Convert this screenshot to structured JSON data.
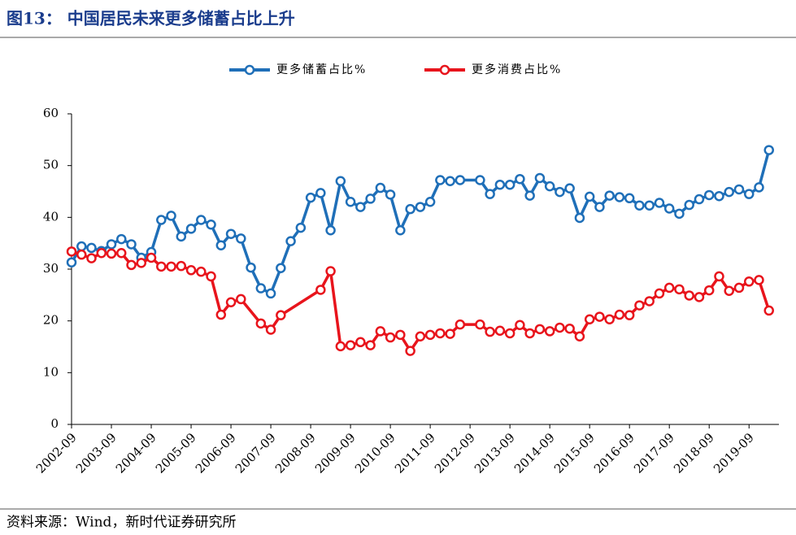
{
  "chart_data": {
    "type": "line",
    "title": "图13：  中国居民未来更多储蓄占比上升",
    "source": "资料来源：Wind，新时代证券研究所",
    "legend": "top",
    "xlim": [
      "2002-09",
      "2020-06"
    ],
    "xticks": [
      "2002-09",
      "2003-09",
      "2004-09",
      "2005-09",
      "2006-09",
      "2007-09",
      "2008-09",
      "2009-09",
      "2010-09",
      "2011-09",
      "2012-09",
      "2013-09",
      "2014-09",
      "2015-09",
      "2016-09",
      "2017-09",
      "2018-09",
      "2019-09"
    ],
    "ylim": [
      0,
      60
    ],
    "yticks": [
      0,
      10,
      20,
      30,
      40,
      50,
      60
    ],
    "series": [
      {
        "name": "更多储蓄占比%",
        "color": "#1f6fb8",
        "x": [
          "2002-09",
          "2002-12",
          "2003-03",
          "2003-06",
          "2003-09",
          "2003-12",
          "2004-03",
          "2004-06",
          "2004-09",
          "2004-12",
          "2005-03",
          "2005-06",
          "2005-09",
          "2005-12",
          "2006-03",
          "2006-06",
          "2006-09",
          "2006-12",
          "2007-03",
          "2007-06",
          "2007-09",
          "2007-12",
          "2008-03",
          "2008-06",
          "2008-09",
          "2008-12",
          "2009-03",
          "2009-06",
          "2009-09",
          "2009-12",
          "2010-03",
          "2010-06",
          "2010-09",
          "2010-12",
          "2011-03",
          "2011-06",
          "2011-09",
          "2011-12",
          "2012-03",
          "2012-06",
          "2012-12",
          "2013-03",
          "2013-06",
          "2013-09",
          "2013-12",
          "2014-03",
          "2014-06",
          "2014-09",
          "2014-12",
          "2015-03",
          "2015-06",
          "2015-09",
          "2015-12",
          "2016-03",
          "2016-06",
          "2016-09",
          "2016-12",
          "2017-03",
          "2017-06",
          "2017-09",
          "2017-12",
          "2018-03",
          "2018-06",
          "2018-09",
          "2018-12",
          "2019-03",
          "2019-06",
          "2019-09",
          "2019-12",
          "2020-03"
        ],
        "values": [
          31.3,
          34.4,
          34.1,
          33.5,
          34.8,
          35.8,
          34.8,
          32.2,
          33.3,
          39.5,
          40.3,
          36.3,
          37.8,
          39.5,
          38.6,
          34.6,
          36.8,
          35.9,
          30.3,
          26.3,
          25.3,
          30.2,
          35.4,
          38.0,
          43.8,
          44.7,
          37.5,
          47.0,
          43.0,
          42.0,
          43.6,
          45.7,
          44.4,
          37.5,
          41.6,
          42.0,
          43.0,
          47.2,
          47.0,
          47.2,
          47.2,
          44.5,
          46.3,
          46.3,
          47.4,
          44.2,
          47.6,
          46.0,
          44.9,
          45.6,
          39.9,
          44.0,
          42.0,
          44.2,
          43.9,
          43.7,
          42.3,
          42.3,
          42.8,
          41.7,
          40.7,
          42.4,
          43.5,
          44.3,
          44.1,
          44.9,
          45.4,
          44.5,
          45.8,
          53.0
        ]
      },
      {
        "name": "更多消费占比%",
        "color": "#e8141c",
        "x": [
          "2002-09",
          "2002-12",
          "2003-03",
          "2003-06",
          "2003-09",
          "2003-12",
          "2004-03",
          "2004-06",
          "2004-09",
          "2004-12",
          "2005-03",
          "2005-06",
          "2005-09",
          "2005-12",
          "2006-03",
          "2006-06",
          "2006-09",
          "2006-12",
          "2007-06",
          "2007-09",
          "2007-12",
          "2008-12",
          "2009-03",
          "2009-06",
          "2009-09",
          "2009-12",
          "2010-03",
          "2010-06",
          "2010-09",
          "2010-12",
          "2011-03",
          "2011-06",
          "2011-09",
          "2011-12",
          "2012-03",
          "2012-06",
          "2012-12",
          "2013-03",
          "2013-06",
          "2013-09",
          "2013-12",
          "2014-03",
          "2014-06",
          "2014-09",
          "2014-12",
          "2015-03",
          "2015-06",
          "2015-09",
          "2015-12",
          "2016-03",
          "2016-06",
          "2016-09",
          "2016-12",
          "2017-03",
          "2017-06",
          "2017-09",
          "2017-12",
          "2018-03",
          "2018-06",
          "2018-09",
          "2018-12",
          "2019-03",
          "2019-06",
          "2019-09",
          "2019-12",
          "2020-03"
        ],
        "values": [
          33.4,
          32.8,
          32.1,
          33.1,
          33.0,
          33.1,
          30.8,
          31.2,
          32.2,
          30.5,
          30.5,
          30.6,
          29.8,
          29.5,
          28.6,
          21.2,
          23.6,
          24.2,
          19.5,
          18.3,
          21.1,
          26.0,
          29.6,
          15.1,
          15.3,
          15.9,
          15.3,
          18.0,
          16.8,
          17.3,
          14.2,
          17.0,
          17.3,
          17.6,
          17.5,
          19.3,
          19.3,
          17.9,
          18.1,
          17.6,
          19.2,
          17.6,
          18.4,
          18.0,
          18.7,
          18.5,
          17.0,
          20.3,
          20.8,
          20.3,
          21.2,
          21.1,
          23.0,
          23.8,
          25.3,
          26.4,
          26.1,
          24.9,
          24.6,
          25.9,
          28.6,
          25.8,
          26.4,
          27.6,
          27.9,
          22.0
        ]
      }
    ]
  }
}
